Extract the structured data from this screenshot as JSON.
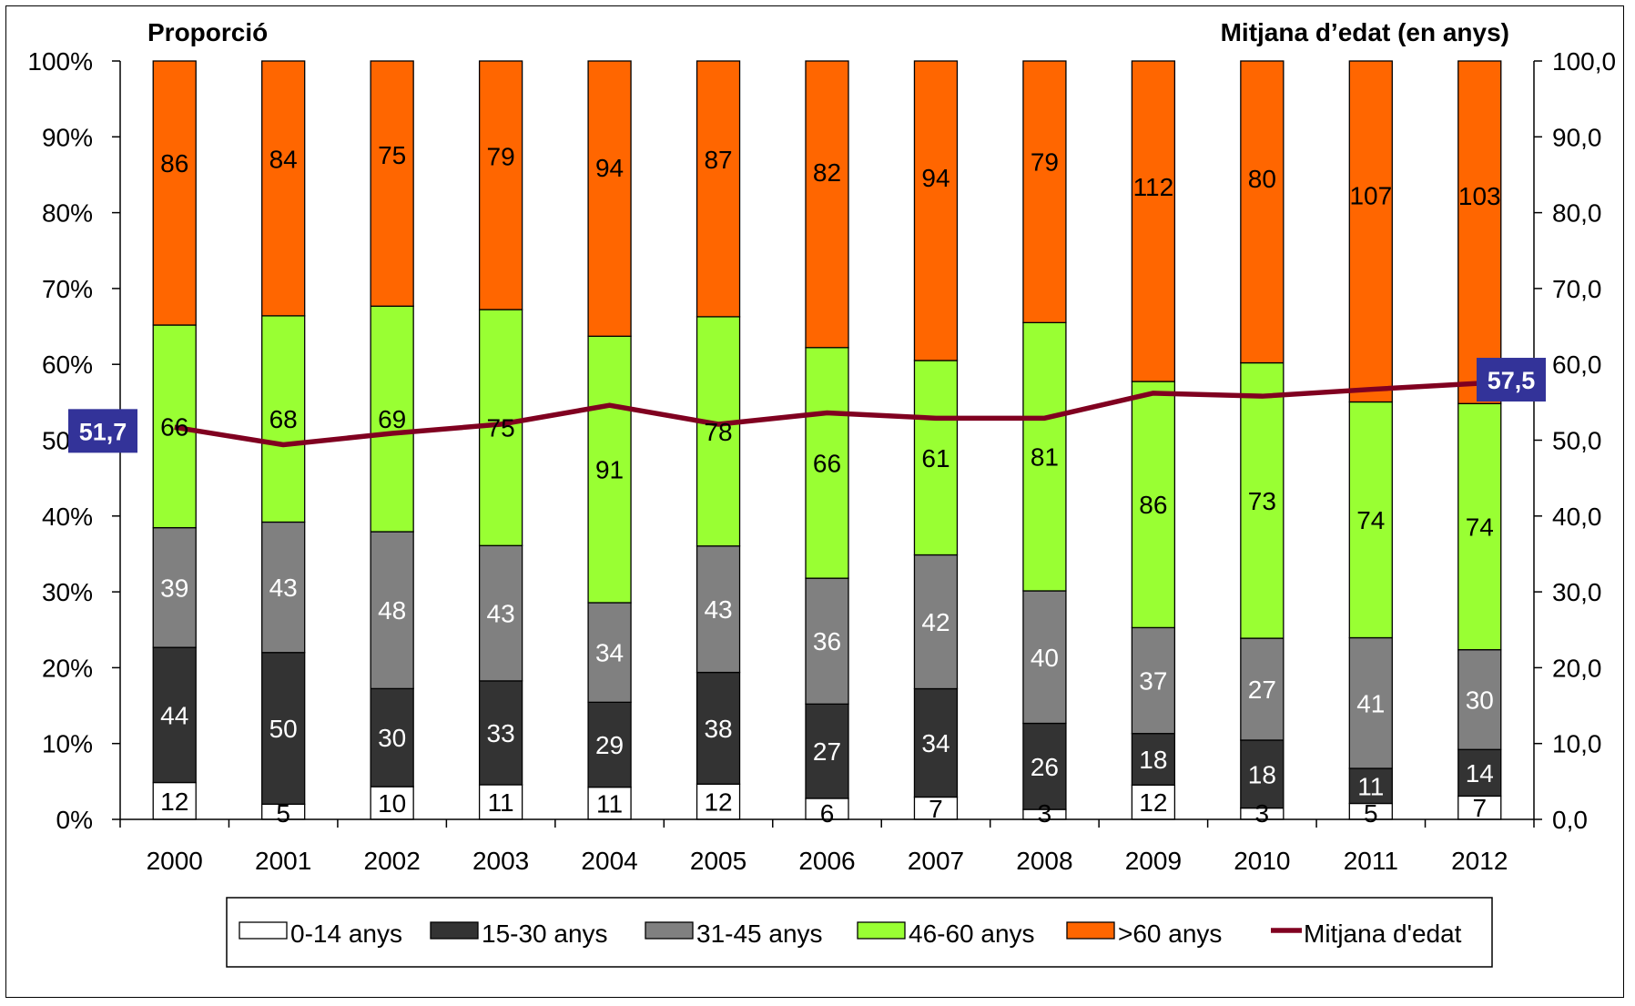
{
  "chart_data": {
    "type": "bar",
    "stacked": "percent",
    "categories": [
      "2000",
      "2001",
      "2002",
      "2003",
      "2004",
      "2005",
      "2006",
      "2007",
      "2008",
      "2009",
      "2010",
      "2011",
      "2012"
    ],
    "series": [
      {
        "name": "0-14 anys",
        "color": "#FFFFFF",
        "values": [
          12,
          5,
          10,
          11,
          11,
          12,
          6,
          7,
          3,
          12,
          3,
          5,
          7
        ]
      },
      {
        "name": "15-30 anys",
        "color": "#333333",
        "values": [
          44,
          50,
          30,
          33,
          29,
          38,
          27,
          34,
          26,
          18,
          18,
          11,
          14
        ]
      },
      {
        "name": "31-45 anys",
        "color": "#808080",
        "values": [
          39,
          43,
          48,
          43,
          34,
          43,
          36,
          42,
          40,
          37,
          27,
          41,
          30
        ]
      },
      {
        "name": "46-60 anys",
        "color": "#99FF33",
        "values": [
          66,
          68,
          69,
          75,
          91,
          78,
          66,
          61,
          81,
          86,
          73,
          74,
          74
        ]
      },
      {
        "name": ">60 anys",
        "color": "#FF6600",
        "values": [
          86,
          84,
          75,
          79,
          94,
          87,
          82,
          94,
          79,
          112,
          80,
          107,
          103
        ]
      }
    ],
    "label_colors": [
      "#000000",
      "#FFFFFF",
      "#FFFFFF",
      "#000000",
      "#000000"
    ],
    "line": {
      "name": "Mitjana d'edat",
      "color": "#800020",
      "values": [
        51.7,
        49.4,
        50.9,
        52.1,
        54.6,
        52.1,
        53.6,
        52.9,
        52.9,
        56.2,
        55.8,
        56.7,
        57.5
      ]
    },
    "callouts": [
      {
        "index": 0,
        "text": "51,7"
      },
      {
        "index": 12,
        "text": "57,5"
      }
    ],
    "callout_color": "#333399",
    "left_axis_title": "Proporció",
    "right_axis_title": "Mitjana d’edat (en anys)",
    "left_ticks": [
      "0%",
      "10%",
      "20%",
      "30%",
      "40%",
      "50%",
      "60%",
      "70%",
      "80%",
      "90%",
      "100%"
    ],
    "right_ticks": [
      "0,0",
      "10,0",
      "20,0",
      "30,0",
      "40,0",
      "50,0",
      "60,0",
      "70,0",
      "80,0",
      "90,0",
      "100,0"
    ],
    "ylim_left": [
      0,
      100
    ],
    "ylim_right": [
      0,
      100
    ],
    "grid": false,
    "legend_position": "bottom"
  }
}
